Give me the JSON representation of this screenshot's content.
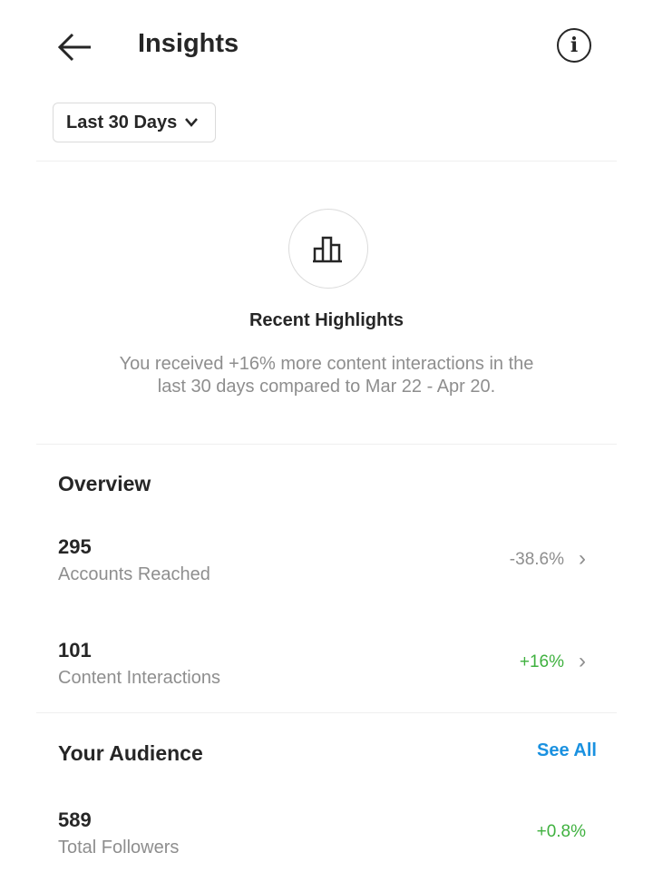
{
  "header": {
    "title": "Insights"
  },
  "filter": {
    "label": "Last 30 Days"
  },
  "highlights": {
    "title": "Recent Highlights",
    "line1": "You received +16% more content interactions in the",
    "line2": "last 30 days compared to Mar 22 - Apr 20."
  },
  "overview": {
    "title": "Overview",
    "items": [
      {
        "value": "295",
        "label": "Accounts Reached",
        "change": "-38.6%"
      },
      {
        "value": "101",
        "label": "Content Interactions",
        "change": "+16%"
      }
    ]
  },
  "audience": {
    "title": "Your Audience",
    "see_all": "See All",
    "items": [
      {
        "value": "589",
        "label": "Total Followers",
        "change": "+0.8%"
      }
    ]
  },
  "colors": {
    "positive": "#3fb13f",
    "neutral": "#8e8e8e",
    "link": "#1a91e0"
  }
}
